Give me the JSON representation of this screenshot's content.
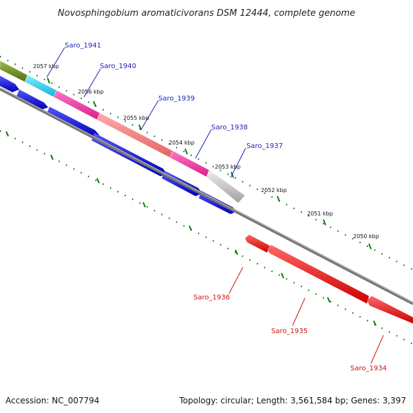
{
  "title": "Novosphingobium aromaticivorans DSM 12444, complete genome",
  "accession": "Accession: NC_007794",
  "topology": "Topology: circular; Length: 3,561,584 bp; Genes: 3,397",
  "colors": {
    "forward_label": "#1d1dbb",
    "reverse_label": "#cc1111",
    "cds_forward": "#0000ee",
    "cds_reverse": "#ee0000",
    "backbone": "#777777",
    "tick": "#117711"
  },
  "kbp_labels": [
    "2057 kbp",
    "2056 kbp",
    "2055 kbp",
    "2054 kbp",
    "2053 kbp",
    "2052 kbp",
    "2051 kbp",
    "2050 kbp"
  ],
  "forward_genes": [
    "Saro_1941",
    "Saro_1940",
    "Saro_1939",
    "Saro_1938",
    "Saro_1937"
  ],
  "reverse_genes": [
    "Saro_1936",
    "Saro_1935",
    "Saro_1934"
  ],
  "cog_colors": [
    "#6b8e23",
    "#22c8ee",
    "#ee3399",
    "#ee7777",
    "#ee3399",
    "#bbbbbb"
  ]
}
